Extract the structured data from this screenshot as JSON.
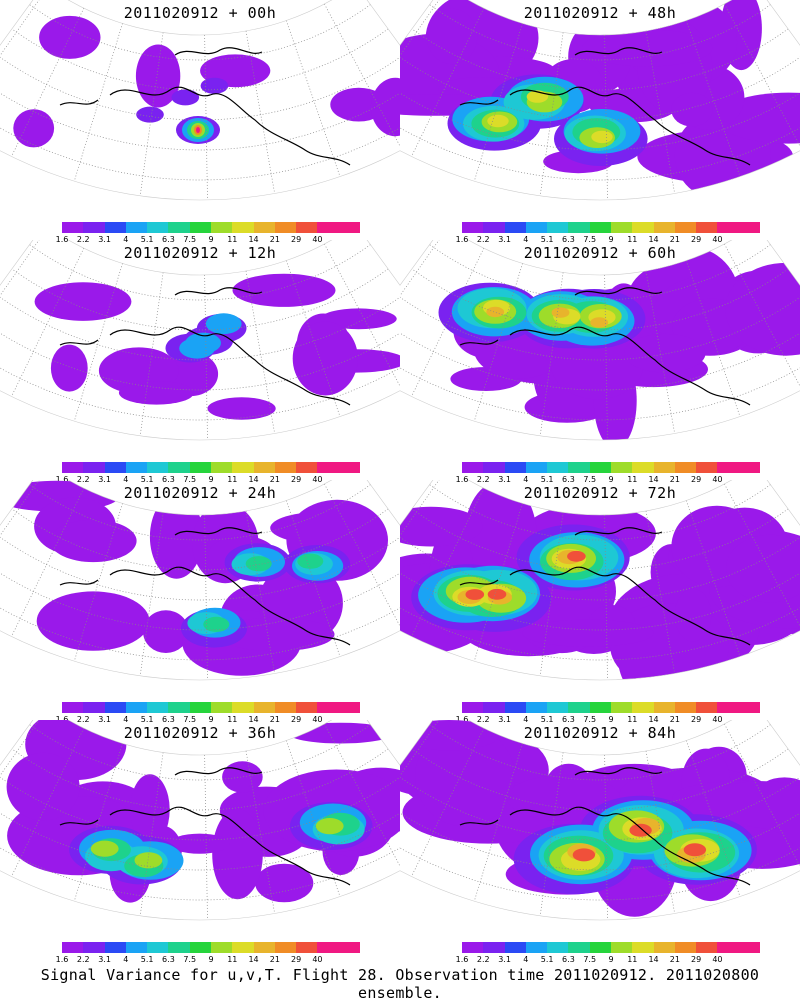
{
  "figure": {
    "caption": "Signal Variance for u,v,T. Flight 28. Observation time 2011020912. 2011020800 ensemble."
  },
  "colorbar": {
    "labels": [
      "1.6",
      "2.2",
      "3.1",
      "4",
      "5.1",
      "6.3",
      "7.5",
      "9",
      "11",
      "14",
      "21",
      "29",
      "40"
    ],
    "colors": [
      "#9a19ea",
      "#7a22f0",
      "#2a4af5",
      "#1aa3f5",
      "#1ec8d4",
      "#1ed28c",
      "#26d43c",
      "#9edc2a",
      "#dcdc28",
      "#e8b42c",
      "#f08c26",
      "#f0503a",
      "#f01882",
      "#f01882"
    ]
  },
  "panels": [
    {
      "title": "2011020912 + 00h",
      "field_level": 0.1
    },
    {
      "title": "2011020912 + 12h",
      "field_level": 0.3
    },
    {
      "title": "2011020912 + 24h",
      "field_level": 0.45
    },
    {
      "title": "2011020912 + 36h",
      "field_level": 0.6
    },
    {
      "title": "2011020912 + 48h",
      "field_level": 0.7
    },
    {
      "title": "2011020912 + 60h",
      "field_level": 0.78
    },
    {
      "title": "2011020912 + 72h",
      "field_level": 0.88
    },
    {
      "title": "2011020912 + 84h",
      "field_level": 0.95
    }
  ]
}
